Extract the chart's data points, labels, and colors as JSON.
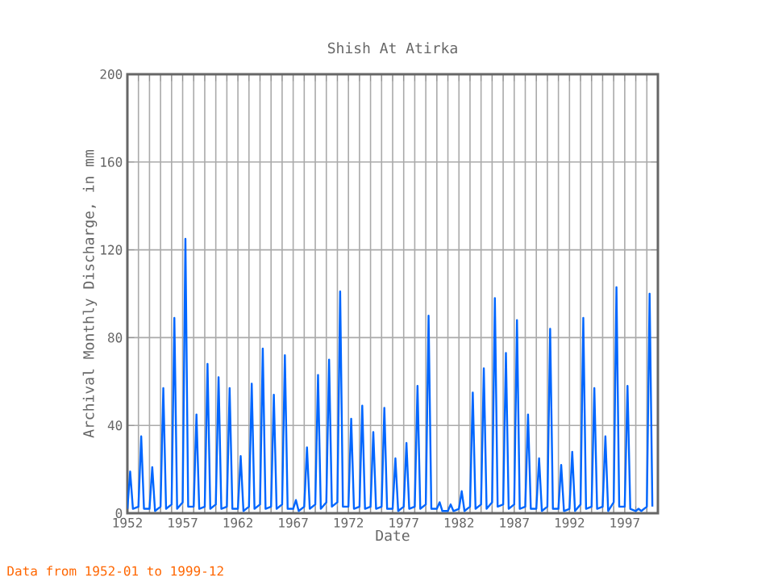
{
  "chart_data": {
    "type": "line",
    "title": "Shish At Atirka",
    "xlabel": "Date",
    "ylabel": "Archival Monthly Discharge, in mm",
    "annotations": [
      "Data from 1952-01 to 1999-12"
    ],
    "xlim": [
      "1952-01",
      "1999-12"
    ],
    "xticks": [
      {
        "value": "1952",
        "label": "1952"
      },
      {
        "value": "1953",
        "label": null
      },
      {
        "value": "1954",
        "label": null
      },
      {
        "value": "1955",
        "label": null
      },
      {
        "value": "1956",
        "label": null
      },
      {
        "value": "1957",
        "label": "1957"
      },
      {
        "value": "1958",
        "label": null
      },
      {
        "value": "1959",
        "label": null
      },
      {
        "value": "1960",
        "label": null
      },
      {
        "value": "1961",
        "label": null
      },
      {
        "value": "1962",
        "label": "1962"
      },
      {
        "value": "1963",
        "label": null
      },
      {
        "value": "1964",
        "label": null
      },
      {
        "value": "1965",
        "label": null
      },
      {
        "value": "1966",
        "label": null
      },
      {
        "value": "1967",
        "label": "1967"
      },
      {
        "value": "1968",
        "label": null
      },
      {
        "value": "1969",
        "label": null
      },
      {
        "value": "1970",
        "label": null
      },
      {
        "value": "1971",
        "label": null
      },
      {
        "value": "1972",
        "label": "1972"
      },
      {
        "value": "1973",
        "label": null
      },
      {
        "value": "1974",
        "label": null
      },
      {
        "value": "1975",
        "label": null
      },
      {
        "value": "1976",
        "label": null
      },
      {
        "value": "1977",
        "label": "1977"
      },
      {
        "value": "1978",
        "label": null
      },
      {
        "value": "1979",
        "label": null
      },
      {
        "value": "1980",
        "label": null
      },
      {
        "value": "1981",
        "label": null
      },
      {
        "value": "1982",
        "label": "1982"
      },
      {
        "value": "1983",
        "label": null
      },
      {
        "value": "1984",
        "label": null
      },
      {
        "value": "1985",
        "label": null
      },
      {
        "value": "1986",
        "label": null
      },
      {
        "value": "1987",
        "label": "1987"
      },
      {
        "value": "1988",
        "label": null
      },
      {
        "value": "1989",
        "label": null
      },
      {
        "value": "1990",
        "label": null
      },
      {
        "value": "1991",
        "label": null
      },
      {
        "value": "1992",
        "label": "1992"
      },
      {
        "value": "1993",
        "label": null
      },
      {
        "value": "1994",
        "label": null
      },
      {
        "value": "1995",
        "label": null
      },
      {
        "value": "1996",
        "label": null
      },
      {
        "value": "1997",
        "label": "1997"
      },
      {
        "value": "1998",
        "label": null
      },
      {
        "value": "1999",
        "label": null
      }
    ],
    "ylim": [
      0,
      200
    ],
    "yticks": [
      0,
      40,
      80,
      120,
      160,
      200
    ],
    "grid": true,
    "series": [
      {
        "color": "#0066ff",
        "x": [
          "1952-01",
          "1952-04",
          "1952-07",
          "1953-01",
          "1953-04",
          "1953-07",
          "1954-01",
          "1954-04",
          "1954-07",
          "1955-01",
          "1955-04",
          "1955-07",
          "1956-01",
          "1956-04",
          "1956-07",
          "1957-01",
          "1957-04",
          "1957-07",
          "1958-01",
          "1958-04",
          "1958-07",
          "1959-01",
          "1959-04",
          "1959-07",
          "1960-01",
          "1960-04",
          "1960-07",
          "1961-01",
          "1961-04",
          "1961-07",
          "1962-01",
          "1962-04",
          "1962-07",
          "1963-01",
          "1963-04",
          "1963-07",
          "1964-01",
          "1964-04",
          "1964-07",
          "1965-01",
          "1965-04",
          "1965-07",
          "1966-01",
          "1966-04",
          "1966-07",
          "1967-01",
          "1967-04",
          "1967-07",
          "1968-01",
          "1968-04",
          "1968-07",
          "1969-01",
          "1969-04",
          "1969-07",
          "1970-01",
          "1970-04",
          "1970-07",
          "1971-01",
          "1971-04",
          "1971-07",
          "1972-01",
          "1972-04",
          "1972-07",
          "1973-01",
          "1973-04",
          "1973-07",
          "1974-01",
          "1974-04",
          "1974-07",
          "1975-01",
          "1975-04",
          "1975-07",
          "1976-01",
          "1976-04",
          "1976-07",
          "1977-01",
          "1977-04",
          "1977-07",
          "1978-01",
          "1978-04",
          "1978-07",
          "1979-01",
          "1979-04",
          "1979-07",
          "1980-01",
          "1980-04",
          "1980-07",
          "1981-01",
          "1981-04",
          "1981-07",
          "1982-01",
          "1982-04",
          "1982-07",
          "1983-01",
          "1983-04",
          "1983-07",
          "1984-01",
          "1984-04",
          "1984-07",
          "1985-01",
          "1985-04",
          "1985-07",
          "1986-01",
          "1986-04",
          "1986-07",
          "1987-01",
          "1987-04",
          "1987-07",
          "1988-01",
          "1988-04",
          "1988-07",
          "1989-01",
          "1989-04",
          "1989-07",
          "1990-01",
          "1990-04",
          "1990-07",
          "1991-01",
          "1991-04",
          "1991-07",
          "1992-01",
          "1992-04",
          "1992-07",
          "1993-01",
          "1993-04",
          "1993-07",
          "1994-01",
          "1994-04",
          "1994-07",
          "1995-01",
          "1995-04",
          "1995-07",
          "1996-01",
          "1996-04",
          "1996-07",
          "1997-01",
          "1997-04",
          "1997-07",
          "1998-01",
          "1998-04",
          "1998-07",
          "1999-01",
          "1999-04",
          "1999-07"
        ],
        "values": [
          2,
          19,
          2,
          3,
          35,
          2,
          2,
          21,
          1,
          3,
          57,
          2,
          4,
          89,
          2,
          5,
          125,
          3,
          3,
          45,
          2,
          3,
          68,
          2,
          4,
          62,
          2,
          3,
          57,
          2,
          2,
          26,
          1,
          3,
          59,
          2,
          4,
          75,
          2,
          3,
          54,
          2,
          4,
          72,
          2,
          2,
          6,
          1,
          3,
          30,
          2,
          4,
          63,
          2,
          5,
          70,
          3,
          5,
          101,
          3,
          3,
          43,
          2,
          3,
          49,
          2,
          3,
          37,
          2,
          3,
          48,
          2,
          2,
          25,
          1,
          3,
          32,
          2,
          3,
          58,
          2,
          4,
          90,
          2,
          2,
          5,
          1,
          1,
          4,
          1,
          2,
          10,
          1,
          3,
          55,
          2,
          4,
          66,
          2,
          5,
          98,
          3,
          4,
          73,
          2,
          4,
          88,
          2,
          3,
          45,
          2,
          2,
          25,
          1,
          3,
          84,
          2,
          2,
          22,
          1,
          2,
          28,
          1,
          4,
          89,
          2,
          3,
          57,
          2,
          3,
          35,
          1,
          5,
          103,
          3,
          3,
          58,
          2,
          1,
          2,
          1,
          3,
          100,
          3
        ]
      }
    ]
  }
}
